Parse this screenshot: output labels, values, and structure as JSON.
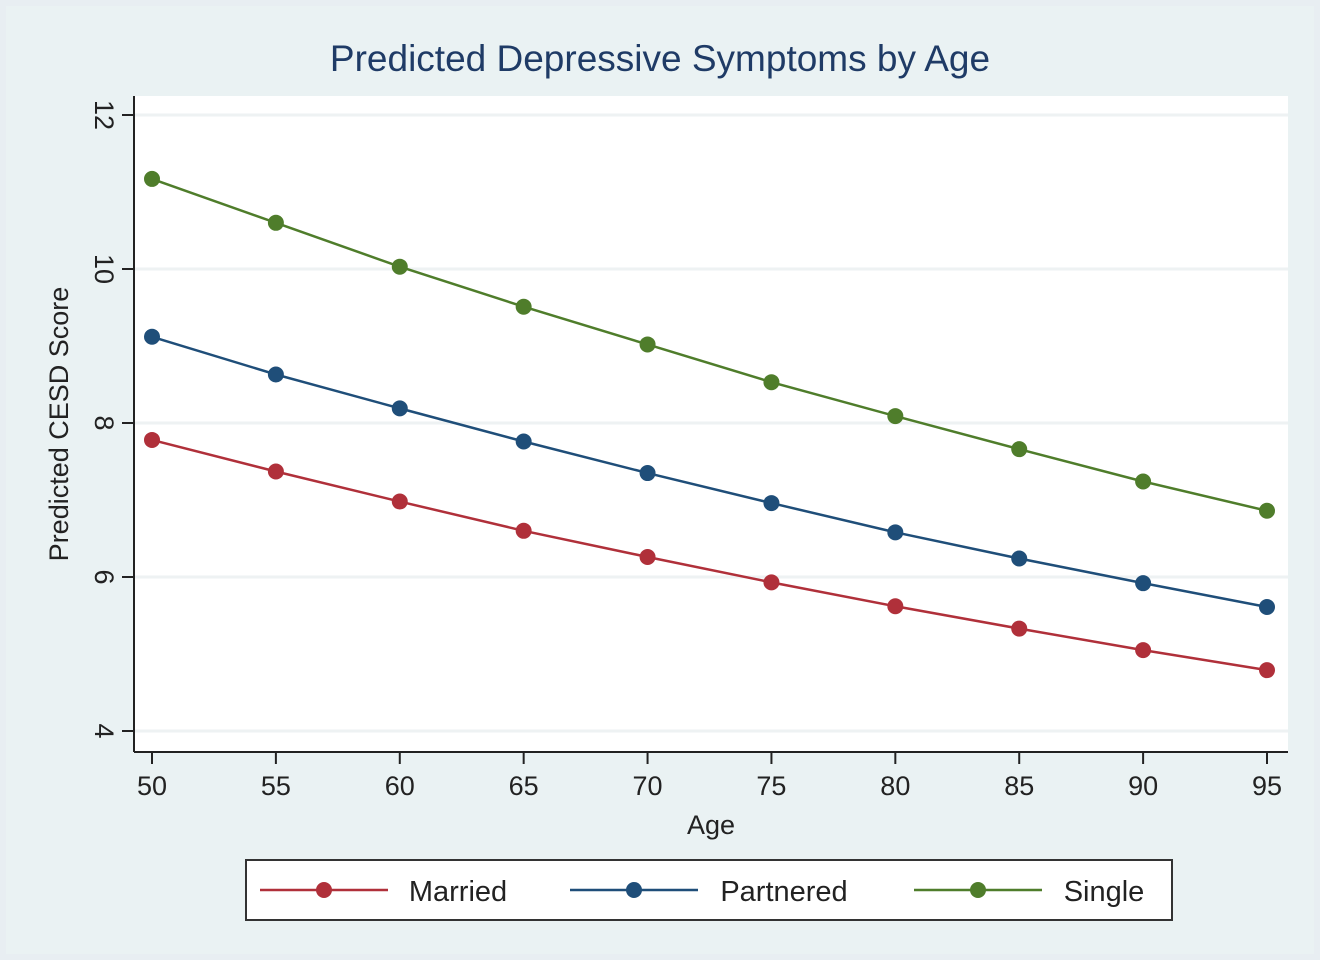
{
  "chart_data": {
    "type": "line",
    "title": "Predicted Depressive Symptoms by Age",
    "xlabel": "Age",
    "ylabel": "Predicted CESD Score",
    "x": [
      50,
      55,
      60,
      65,
      70,
      75,
      80,
      85,
      90,
      95
    ],
    "xticks": [
      "50",
      "55",
      "60",
      "65",
      "70",
      "75",
      "80",
      "85",
      "90",
      "95"
    ],
    "yticks": [
      "4",
      "6",
      "8",
      "10",
      "12"
    ],
    "ylim": [
      4,
      12
    ],
    "grid": "horizontal",
    "legend_position": "bottom",
    "series": [
      {
        "name": "Married",
        "color": "#b0303a",
        "values": [
          7.78,
          7.37,
          6.98,
          6.6,
          6.26,
          5.93,
          5.62,
          5.33,
          5.05,
          4.79
        ]
      },
      {
        "name": "Partnered",
        "color": "#1f4e79",
        "values": [
          9.12,
          8.63,
          8.19,
          7.76,
          7.35,
          6.96,
          6.58,
          6.24,
          5.92,
          5.61
        ]
      },
      {
        "name": "Single",
        "color": "#4f7d2b",
        "values": [
          11.17,
          10.6,
          10.03,
          9.51,
          9.02,
          8.53,
          8.09,
          7.66,
          7.24,
          6.86
        ]
      }
    ]
  }
}
